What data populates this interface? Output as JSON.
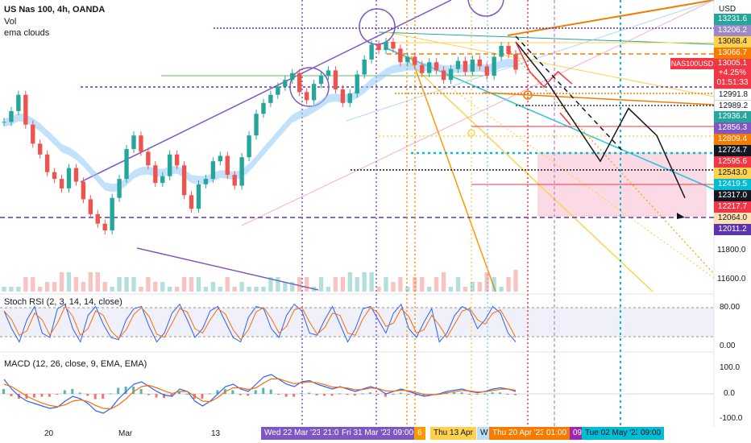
{
  "header": {
    "symbol_title": "US Nas 100, 4h, OANDA",
    "vol_label": "Vol",
    "ema_label": "ema clouds",
    "currency": "USD"
  },
  "rsi_panel": {
    "title": "Stoch RSI (2, 3, 14, 14, close)",
    "tick_upper": "80.00",
    "tick_lower": "0.00"
  },
  "macd_panel": {
    "title": "MACD (12, 26, close, 9, EMA, EMA)",
    "tick_upper": "100.0",
    "tick_mid": "0.0",
    "tick_lower": "-100.0"
  },
  "current_price": {
    "ticker": "NAS100USD",
    "value": "13005.1",
    "change": "+4.25%",
    "countdown": "01:51:33",
    "color": "#f23645"
  },
  "price_tags": [
    {
      "text": "13231.6",
      "color": "#26a69a"
    },
    {
      "text": "13206.2",
      "color": "#9c88c8"
    },
    {
      "text": "13068.4",
      "color": "#ffd24d"
    },
    {
      "text": "13066.7",
      "color": "#f57c00"
    },
    {
      "text": "12991.8",
      "color": "#ffffff"
    },
    {
      "text": "12989.2",
      "color": "#ffffff"
    },
    {
      "text": "12936.4",
      "color": "#26a69a"
    },
    {
      "text": "12856.3",
      "color": "#7e57c2"
    },
    {
      "text": "12809.4",
      "color": "#f57c00"
    },
    {
      "text": "12724.7",
      "color": "#131722"
    },
    {
      "text": "12595.6",
      "color": "#f23645"
    },
    {
      "text": "12543.0",
      "color": "#ffd24d"
    },
    {
      "text": "12419.5",
      "color": "#00bcd4"
    },
    {
      "text": "12317.0",
      "color": "#131722"
    },
    {
      "text": "12217.7",
      "color": "#f23645"
    },
    {
      "text": "12064.0",
      "color": "#ffe0b2"
    },
    {
      "text": "12011.2",
      "color": "#5e35b1"
    }
  ],
  "price_axis_ticks": [
    "11800.0",
    "11600.0"
  ],
  "x_axis_ticks": [
    "20",
    "Mar",
    "13"
  ],
  "date_tags": [
    {
      "text": "Wed 22 Mar '23",
      "color": "#7e57c2"
    },
    {
      "text": "21:0",
      "color": "#7e57c2"
    },
    {
      "text": "Fri 31 Mar '23",
      "color": "#7e57c2"
    },
    {
      "text": "09:00",
      "color": "#7e57c2"
    },
    {
      "text": "6",
      "color": "#ff9800"
    },
    {
      "text": "Thu 13 Apr",
      "color": "#ffd24d"
    },
    {
      "text": "W",
      "color": "#90caf9"
    },
    {
      "text": "Thu 20 Apr '23",
      "color": "#f57c00"
    },
    {
      "text": "01:00",
      "color": "#f57c00"
    },
    {
      "text": "09",
      "color": "#9c27b0"
    },
    {
      "text": "Tue 02 May '23",
      "color": "#00bcd4"
    },
    {
      "text": "09:00",
      "color": "#00bcd4"
    }
  ],
  "chart_data": {
    "type": "candlestick",
    "title": "US Nas 100, 4h, OANDA",
    "y_unit": "USD",
    "ylim": [
      11500,
      13400
    ],
    "price_series": [
      12620,
      12700,
      12820,
      12600,
      12460,
      12380,
      12250,
      12200,
      12130,
      12280,
      12180,
      12050,
      11940,
      11870,
      11820,
      12060,
      12200,
      12420,
      12520,
      12400,
      12300,
      12170,
      12220,
      12380,
      12300,
      12080,
      11980,
      12160,
      12200,
      12330,
      12370,
      12230,
      12150,
      12360,
      12520,
      12680,
      12760,
      12820,
      12880,
      12930,
      12980,
      12840,
      12780,
      12900,
      12960,
      13000,
      12860,
      12760,
      12830,
      12970,
      13080,
      13190,
      13150,
      13210,
      13160,
      13060,
      13100,
      13040,
      12980,
      13060,
      13000,
      12930,
      13010,
      13070,
      12990,
      13080,
      13030,
      12960,
      13100,
      13180,
      13120,
      13005
    ],
    "projection_path_black": [
      13210,
      12950,
      12640,
      12330,
      12720,
      12520,
      12060
    ],
    "projection_path_red": [
      13210,
      12990,
      12880,
      12990,
      12900
    ],
    "rsi_series": [
      80,
      40,
      10,
      60,
      90,
      30,
      20,
      85,
      95,
      40,
      10,
      70,
      90,
      50,
      20,
      15,
      60,
      85,
      90,
      45,
      10,
      30,
      75,
      95,
      60,
      20,
      40,
      80,
      90,
      55,
      20,
      10,
      65,
      90,
      85,
      40,
      20,
      70,
      95,
      80,
      30,
      25,
      60,
      90,
      50,
      10,
      40,
      85,
      90,
      60,
      30,
      75,
      95,
      40,
      20,
      55,
      85,
      10,
      30,
      70,
      90,
      80,
      40,
      60,
      90,
      75,
      30,
      10
    ],
    "macd_series": [
      60,
      20,
      -10,
      -30,
      -40,
      -50,
      -60,
      -55,
      -30,
      -10,
      -20,
      -40,
      -70,
      -80,
      -60,
      -20,
      10,
      40,
      50,
      30,
      10,
      -5,
      -10,
      20,
      10,
      -30,
      -50,
      -30,
      0,
      30,
      40,
      20,
      10,
      40,
      70,
      80,
      60,
      40,
      30,
      50,
      55,
      40,
      30,
      20,
      30,
      20,
      10,
      20,
      30,
      20,
      0,
      10,
      20,
      10,
      0,
      -10,
      -5,
      0,
      10,
      15,
      20,
      10,
      5,
      10,
      20,
      25,
      20,
      10
    ],
    "macd_signal_series": [
      40,
      30,
      10,
      -10,
      -25,
      -38,
      -48,
      -53,
      -45,
      -30,
      -25,
      -32,
      -48,
      -60,
      -62,
      -45,
      -20,
      10,
      30,
      35,
      25,
      12,
      2,
      10,
      10,
      -10,
      -30,
      -32,
      -15,
      10,
      25,
      25,
      18,
      25,
      45,
      62,
      62,
      52,
      42,
      46,
      50,
      46,
      38,
      28,
      28,
      24,
      17,
      18,
      24,
      22,
      12,
      11,
      15,
      13,
      6,
      -2,
      -4,
      -2,
      4,
      9,
      14,
      12,
      8,
      9,
      14,
      19,
      20,
      15
    ]
  }
}
